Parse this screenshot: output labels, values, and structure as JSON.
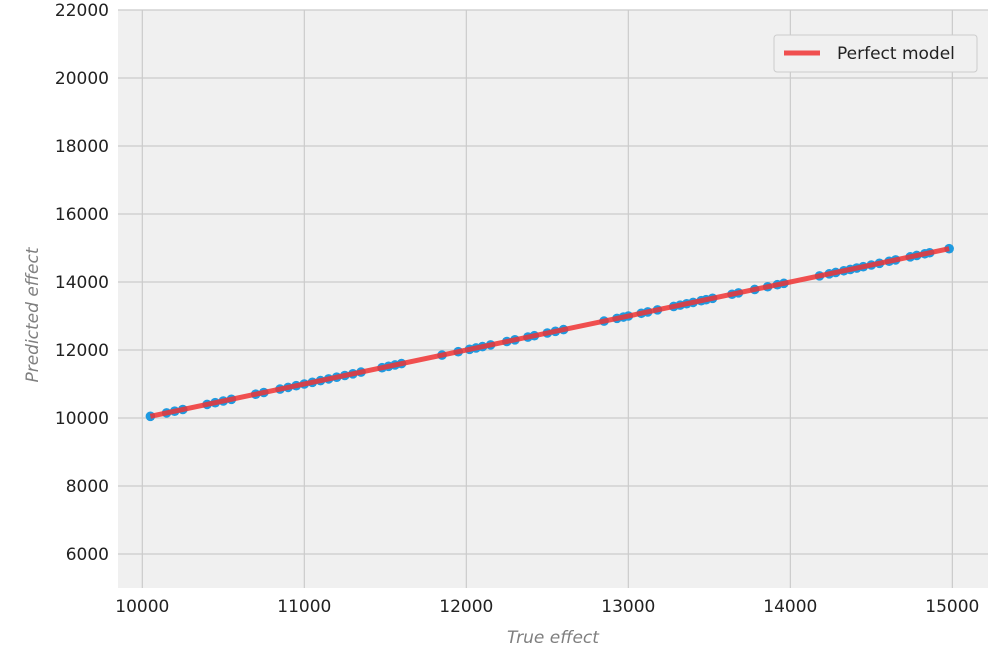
{
  "chart_data": {
    "type": "scatter",
    "xlabel": "True effect",
    "ylabel": "Predicted effect",
    "xlim": [
      9850,
      15220
    ],
    "ylim": [
      5000,
      22000
    ],
    "xticks": [
      10000,
      11000,
      12000,
      13000,
      14000,
      15000
    ],
    "yticks": [
      6000,
      8000,
      10000,
      12000,
      14000,
      16000,
      18000,
      20000,
      22000
    ],
    "grid": true,
    "legend": {
      "placement": "top-right",
      "entries": [
        "Perfect model"
      ]
    },
    "colors": {
      "points": "#1f9ae0",
      "line": "#f03232",
      "background": "#f0f0f0",
      "grid": "#cbcbcb"
    },
    "series": [
      {
        "kind": "points",
        "x": [
          10050,
          10150,
          10200,
          10250,
          10400,
          10450,
          10500,
          10550,
          10700,
          10750,
          10850,
          10900,
          10950,
          11000,
          11050,
          11100,
          11150,
          11200,
          11250,
          11300,
          11350,
          11480,
          11520,
          11560,
          11600,
          11850,
          11950,
          12020,
          12060,
          12100,
          12150,
          12250,
          12300,
          12380,
          12420,
          12500,
          12550,
          12600,
          12850,
          12930,
          12970,
          13000,
          13080,
          13120,
          13180,
          13280,
          13320,
          13360,
          13400,
          13450,
          13480,
          13520,
          13640,
          13680,
          13780,
          13860,
          13920,
          13960,
          14180,
          14240,
          14280,
          14330,
          14370,
          14410,
          14450,
          14500,
          14550,
          14610,
          14650,
          14740,
          14780,
          14830,
          14860,
          14980
        ],
        "y": [
          10050,
          10150,
          10200,
          10250,
          10400,
          10450,
          10500,
          10550,
          10700,
          10750,
          10850,
          10900,
          10950,
          11000,
          11050,
          11100,
          11150,
          11200,
          11250,
          11300,
          11350,
          11480,
          11520,
          11560,
          11600,
          11850,
          11950,
          12020,
          12060,
          12100,
          12150,
          12250,
          12300,
          12380,
          12420,
          12500,
          12550,
          12600,
          12850,
          12930,
          12970,
          13000,
          13080,
          13120,
          13180,
          13280,
          13320,
          13360,
          13400,
          13450,
          13480,
          13520,
          13640,
          13680,
          13780,
          13860,
          13920,
          13960,
          14180,
          14240,
          14280,
          14330,
          14370,
          14410,
          14450,
          14500,
          14550,
          14610,
          14650,
          14740,
          14780,
          14830,
          14860,
          14980
        ]
      },
      {
        "kind": "line",
        "name": "Perfect model",
        "x": [
          10050,
          14980
        ],
        "y": [
          10050,
          14980
        ]
      }
    ]
  }
}
